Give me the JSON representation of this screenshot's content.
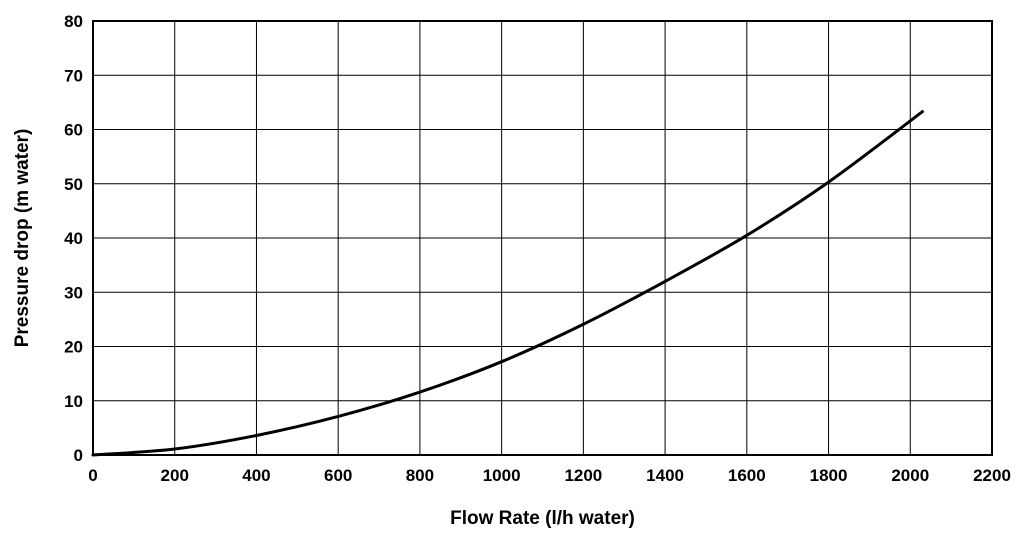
{
  "chart_data": {
    "type": "line",
    "title": "",
    "xlabel": "Flow Rate (l/h water)",
    "ylabel": "Pressure drop (m water)",
    "xlim": [
      0,
      2200
    ],
    "ylim": [
      0,
      80
    ],
    "x_ticks": [
      "0",
      "200",
      "400",
      "600",
      "800",
      "1000",
      "1200",
      "1400",
      "1600",
      "1800",
      "2000",
      "2200"
    ],
    "y_ticks": [
      "0",
      "10",
      "20",
      "30",
      "40",
      "50",
      "60",
      "70",
      "80"
    ],
    "grid": true,
    "legend": "none",
    "series": [
      {
        "x": [
          0,
          200,
          400,
          600,
          800,
          1000,
          1200,
          1400,
          1600,
          1800,
          2030
        ],
        "y": [
          0,
          1.1,
          3.6,
          7.1,
          11.6,
          17.2,
          24.1,
          32.0,
          40.5,
          50.3,
          63.3
        ]
      }
    ]
  }
}
